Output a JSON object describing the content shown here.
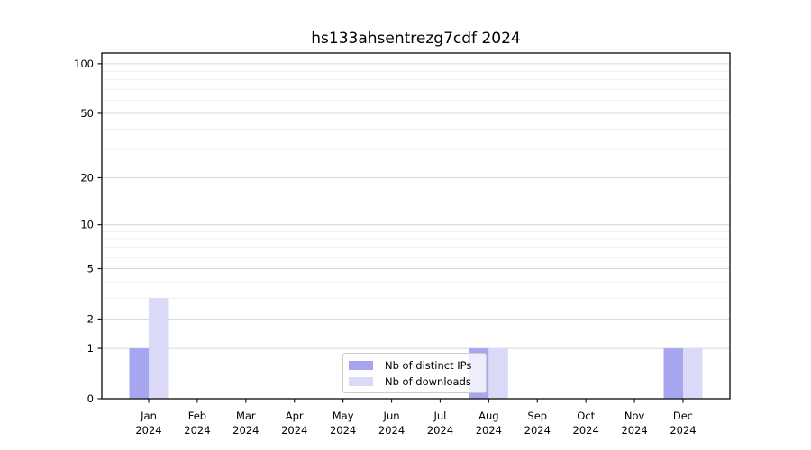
{
  "title": "hs133ahsentrezg7cdf 2024",
  "legend": {
    "items": [
      {
        "label": "Nb of distinct IPs",
        "color": "#a5a5f0"
      },
      {
        "label": "Nb of downloads",
        "color": "#dadaf8"
      }
    ]
  },
  "chart_data": {
    "type": "bar",
    "title": "hs133ahsentrezg7cdf 2024",
    "categories": [
      "Jan",
      "Feb",
      "Mar",
      "Apr",
      "May",
      "Jun",
      "Jul",
      "Aug",
      "Sep",
      "Oct",
      "Nov",
      "Dec"
    ],
    "category_year": "2024",
    "series": [
      {
        "name": "Nb of distinct IPs",
        "color": "#a5a5f0",
        "values": [
          1,
          0,
          0,
          0,
          0,
          0,
          0,
          1,
          0,
          0,
          0,
          1
        ]
      },
      {
        "name": "Nb of downloads",
        "color": "#dadaf8",
        "values": [
          3,
          0,
          0,
          0,
          0,
          0,
          0,
          1,
          0,
          0,
          0,
          1
        ]
      }
    ],
    "yscale": "log1p",
    "ylim": [
      0,
      116
    ],
    "yticks": [
      0,
      1,
      2,
      5,
      10,
      20,
      50,
      100
    ],
    "minor_yticks": [
      3,
      4,
      6,
      7,
      8,
      9,
      30,
      40,
      60,
      70,
      80,
      90
    ],
    "grid": "horizontal",
    "legend_position": "lower center",
    "colors": {
      "major_grid": "#d8d8d8",
      "minor_grid": "#efefef",
      "axis": "#1a1a1a",
      "text": "#000000"
    }
  }
}
